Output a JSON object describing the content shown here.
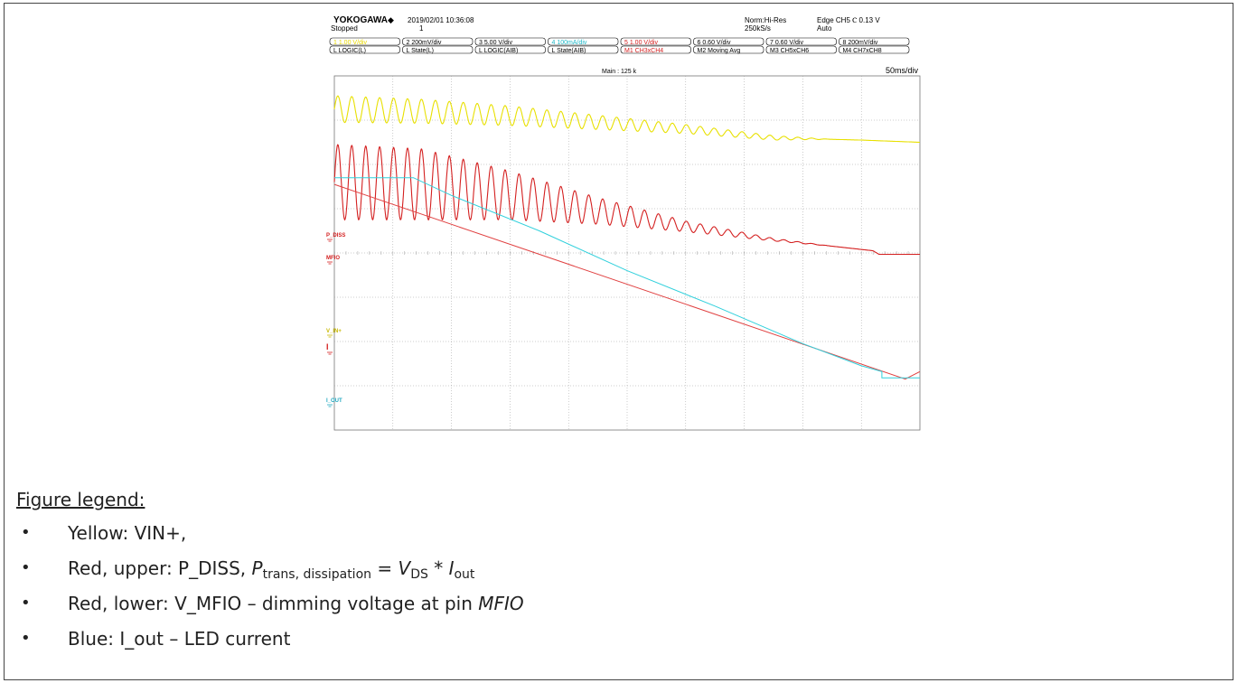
{
  "scope": {
    "brand": "YOKOGAWA",
    "brand_mark": "◆",
    "datetime": "2019/02/01 10:36:08",
    "status": "Stopped",
    "count": "1",
    "mode": "Norm:Hi-Res",
    "sample_rate": "250kS/s",
    "trigger": "Edge CH5 Ⲥ 0.13 V",
    "trigger_mode": "Auto",
    "channels_row1": [
      {
        "label": "1   1.00 V/div",
        "color": "#e8d800"
      },
      {
        "label": "2   200mV/div",
        "color": "#000000"
      },
      {
        "label": "3   5.00 V/div",
        "color": "#000000"
      },
      {
        "label": "4   100mA/div",
        "color": "#20b8c8"
      },
      {
        "label": "5   1.00 V/div",
        "color": "#d42020"
      },
      {
        "label": "6   0.60 V/div",
        "color": "#000000"
      },
      {
        "label": "7   0.60 V/div",
        "color": "#000000"
      },
      {
        "label": "8   200mV/div",
        "color": "#000000"
      }
    ],
    "channels_row2": [
      {
        "label": "L  LOGIC(L)",
        "color": "#000000"
      },
      {
        "label": "L  State(L)",
        "color": "#000000"
      },
      {
        "label": "L  LOGIC(AIB)",
        "color": "#000000"
      },
      {
        "label": "L  State(AIB)",
        "color": "#000000"
      },
      {
        "label": "M1 CH3xCH4",
        "color": "#d42020"
      },
      {
        "label": "M2 Moving  Avg",
        "color": "#000000"
      },
      {
        "label": "M3 CH5xCH6",
        "color": "#000000"
      },
      {
        "label": "M4 CH7xCH8",
        "color": "#000000"
      }
    ],
    "main_points": "Main : 125 k",
    "timebase": "50ms/div",
    "marker_labels": [
      {
        "text": "P_DISS",
        "color": "#d42020"
      },
      {
        "text": "MFIO",
        "color": "#d42020"
      },
      {
        "text": "V_IN+",
        "color": "#c8b800"
      },
      {
        "text": "I",
        "color": "#d42020"
      },
      {
        "text": "I_OUT",
        "color": "#20a8c0"
      }
    ],
    "colors": {
      "yellow": "#e8e000",
      "red": "#d42020",
      "cyan": "#30d0dc",
      "grid": "#9a9a9a"
    }
  },
  "chart_data": {
    "type": "line",
    "title": "",
    "xlabel": "",
    "ylabel": "",
    "xlim": [
      0,
      10
    ],
    "ylim": [
      0,
      8
    ],
    "grid": true,
    "series": [
      {
        "name": "VIN+",
        "color": "#e8e000",
        "center": [
          [
            0,
            7.25
          ],
          [
            1.5,
            7.2
          ],
          [
            3,
            7.1
          ],
          [
            4.5,
            6.95
          ],
          [
            6,
            6.8
          ],
          [
            7.5,
            6.6
          ],
          [
            9,
            6.55
          ],
          [
            10,
            6.5
          ]
        ],
        "amplitude": [
          [
            0,
            0.3
          ],
          [
            1.5,
            0.27
          ],
          [
            3,
            0.22
          ],
          [
            4.5,
            0.16
          ],
          [
            6,
            0.1
          ],
          [
            7.5,
            0.05
          ],
          [
            8.5,
            0.0
          ],
          [
            10,
            0.0
          ]
        ],
        "cycles": 42
      },
      {
        "name": "P_DISS",
        "color": "#d42020",
        "center": [
          [
            0,
            5.6
          ],
          [
            1.5,
            5.55
          ],
          [
            3,
            5.3
          ],
          [
            4.5,
            4.95
          ],
          [
            6,
            4.6
          ],
          [
            7.5,
            4.3
          ],
          [
            9.2,
            4.05
          ],
          [
            9.3,
            3.97
          ],
          [
            10,
            3.97
          ]
        ],
        "amplitude": [
          [
            0,
            0.85
          ],
          [
            1.5,
            0.8
          ],
          [
            3,
            0.55
          ],
          [
            4.5,
            0.3
          ],
          [
            6,
            0.12
          ],
          [
            7.5,
            0.03
          ],
          [
            8.5,
            0.0
          ],
          [
            10,
            0.0
          ]
        ],
        "cycles": 42
      },
      {
        "name": "V_MFIO",
        "color": "#e04040",
        "points": [
          [
            0,
            5.55
          ],
          [
            9.75,
            1.15
          ],
          [
            10,
            1.32
          ]
        ]
      },
      {
        "name": "I_out",
        "color": "#30d0dc",
        "points": [
          [
            0,
            5.7
          ],
          [
            1.35,
            5.7
          ],
          [
            2,
            5.3
          ],
          [
            3.5,
            4.5
          ],
          [
            5,
            3.6
          ],
          [
            6.5,
            2.8
          ],
          [
            8,
            1.95
          ],
          [
            9,
            1.45
          ],
          [
            9.35,
            1.32
          ],
          [
            9.35,
            1.18
          ],
          [
            10,
            1.18
          ]
        ]
      }
    ]
  },
  "legend": {
    "title": "Figure legend:",
    "bullet": "•",
    "items": [
      {
        "parts": [
          {
            "t": "Yellow: VIN+,"
          }
        ]
      },
      {
        "parts": [
          {
            "t": "Red, upper: P_DISS, "
          },
          {
            "t": "P",
            "i": true
          },
          {
            "t": "trans, dissipation",
            "sub": true
          },
          {
            "t": " = "
          },
          {
            "t": "V",
            "i": true
          },
          {
            "t": "DS",
            "sub": true
          },
          {
            "t": " * "
          },
          {
            "t": "I",
            "i": true
          },
          {
            "t": "out",
            "sub": true
          }
        ]
      },
      {
        "parts": [
          {
            "t": "Red, lower: V_MFIO – dimming voltage at pin "
          },
          {
            "t": "MFIO",
            "i": true
          }
        ]
      },
      {
        "parts": [
          {
            "t": "Blue: I_out – LED current"
          }
        ]
      }
    ]
  }
}
